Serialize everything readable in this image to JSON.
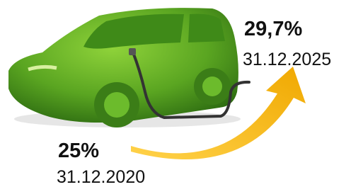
{
  "start": {
    "share": "25%",
    "date": "31.12.2020"
  },
  "end": {
    "share": "29,7%",
    "date": "31.12.2025"
  }
}
